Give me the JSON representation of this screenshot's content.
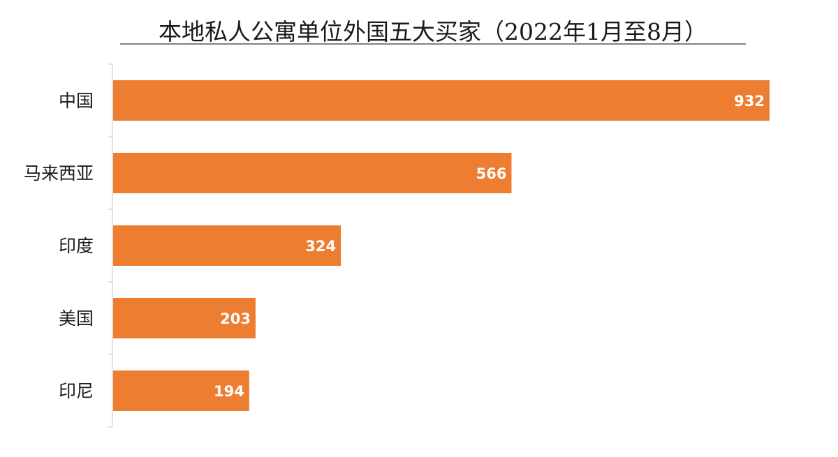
{
  "chart_data": {
    "type": "bar",
    "orientation": "horizontal",
    "title": "本地私人公寓单位外国五大买家（2022年1月至8月）",
    "categories": [
      "中国",
      "马来西亚",
      "印度",
      "美国",
      "印尼"
    ],
    "values": [
      932,
      566,
      324,
      203,
      194
    ],
    "xlabel": "",
    "ylabel": "",
    "xlim": [
      0,
      932
    ],
    "grid": false,
    "legend": "none",
    "data_labels": true,
    "colors": {
      "bar": "#ED7D31",
      "value_label": "#FFFFFF",
      "axis": "#D9D9D9",
      "title_underline": "#595959"
    }
  }
}
